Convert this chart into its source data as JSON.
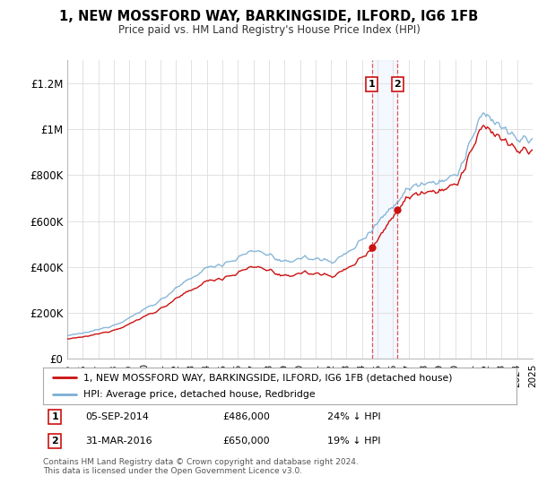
{
  "title": "1, NEW MOSSFORD WAY, BARKINGSIDE, ILFORD, IG6 1FB",
  "subtitle": "Price paid vs. HM Land Registry's House Price Index (HPI)",
  "legend_line1": "1, NEW MOSSFORD WAY, BARKINGSIDE, ILFORD, IG6 1FB (detached house)",
  "legend_line2": "HPI: Average price, detached house, Redbridge",
  "annotation1_date": "05-SEP-2014",
  "annotation1_price": "£486,000",
  "annotation1_hpi": "24% ↓ HPI",
  "annotation1_year": 2014.67,
  "annotation1_value": 486000,
  "annotation2_date": "31-MAR-2016",
  "annotation2_price": "£650,000",
  "annotation2_hpi": "19% ↓ HPI",
  "annotation2_year": 2016.25,
  "annotation2_value": 650000,
  "footnote": "Contains HM Land Registry data © Crown copyright and database right 2024.\nThis data is licensed under the Open Government Licence v3.0.",
  "hpi_color": "#7bafd4",
  "price_color": "#cc1111",
  "background_color": "#ffffff",
  "grid_color": "#dddddd",
  "ylim": [
    0,
    1300000
  ],
  "yticks": [
    0,
    200000,
    400000,
    600000,
    800000,
    1000000,
    1200000
  ],
  "ytick_labels": [
    "£0",
    "£200K",
    "£400K",
    "£600K",
    "£800K",
    "£1M",
    "£1.2M"
  ],
  "xmin": 1995,
  "xmax": 2025
}
